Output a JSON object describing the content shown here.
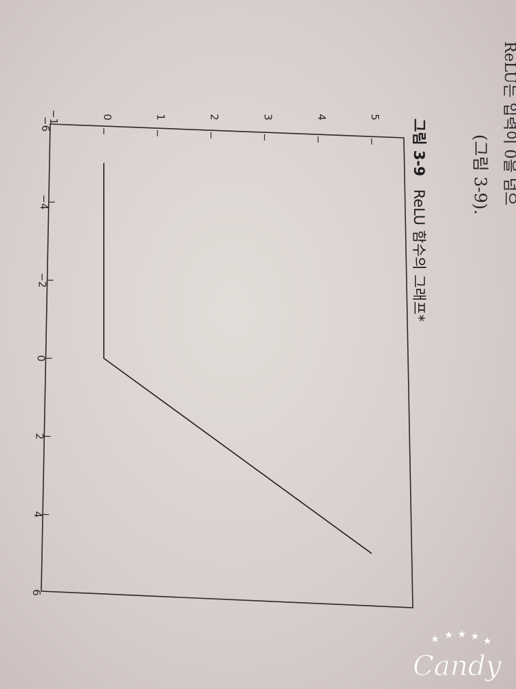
{
  "page": {
    "top_line": "ReLU는 입력이 0을 넘으",
    "ref_text": "(그림 3-9).",
    "caption_label": "그림 3-9",
    "caption_title": "ReLU 함수의 그래프*"
  },
  "watermark": {
    "text": "Candy",
    "star_icon": "star-icon"
  },
  "chart_data": {
    "type": "line",
    "title": "",
    "xlabel": "",
    "ylabel": "",
    "xlim": [
      -6,
      6
    ],
    "ylim": [
      -1,
      5.1
    ],
    "xticks": [
      -6,
      -4,
      -2,
      0,
      2,
      4,
      6
    ],
    "yticks": [
      -1,
      0,
      1,
      2,
      3,
      4,
      5
    ],
    "xtick_labels": [
      "−6",
      "−4",
      "−2",
      "0",
      "2",
      "4",
      "6"
    ],
    "ytick_labels": [
      "−1",
      "0",
      "1",
      "2",
      "3",
      "4",
      "5"
    ],
    "grid": false,
    "series": [
      {
        "x": [
          -5,
          0,
          5
        ],
        "y": [
          0,
          0,
          5
        ]
      }
    ]
  }
}
